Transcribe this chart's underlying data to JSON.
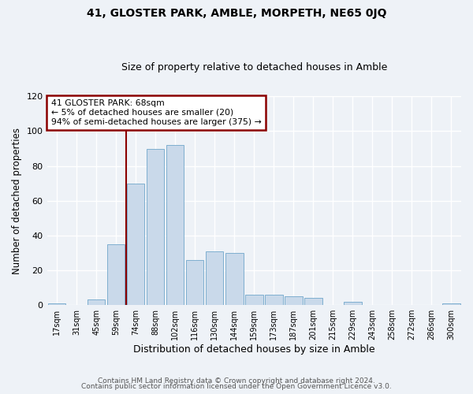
{
  "title": "41, GLOSTER PARK, AMBLE, MORPETH, NE65 0JQ",
  "subtitle": "Size of property relative to detached houses in Amble",
  "xlabel": "Distribution of detached houses by size in Amble",
  "ylabel": "Number of detached properties",
  "bar_labels": [
    "17sqm",
    "31sqm",
    "45sqm",
    "59sqm",
    "74sqm",
    "88sqm",
    "102sqm",
    "116sqm",
    "130sqm",
    "144sqm",
    "159sqm",
    "173sqm",
    "187sqm",
    "201sqm",
    "215sqm",
    "229sqm",
    "243sqm",
    "258sqm",
    "272sqm",
    "286sqm",
    "300sqm"
  ],
  "bar_values": [
    1,
    0,
    3,
    35,
    70,
    90,
    92,
    26,
    31,
    30,
    6,
    6,
    5,
    4,
    0,
    2,
    0,
    0,
    0,
    0,
    1
  ],
  "bar_color": "#c9d9ea",
  "bar_edge_color": "#7fafd0",
  "ylim": [
    0,
    120
  ],
  "yticks": [
    0,
    20,
    40,
    60,
    80,
    100,
    120
  ],
  "marker_color": "#8b0000",
  "annotation_title": "41 GLOSTER PARK: 68sqm",
  "annotation_line1": "← 5% of detached houses are smaller (20)",
  "annotation_line2": "94% of semi-detached houses are larger (375) →",
  "annotation_box_color": "#8b0000",
  "footer1": "Contains HM Land Registry data © Crown copyright and database right 2024.",
  "footer2": "Contains public sector information licensed under the Open Government Licence v3.0.",
  "background_color": "#eef2f7",
  "grid_color": "#ffffff"
}
